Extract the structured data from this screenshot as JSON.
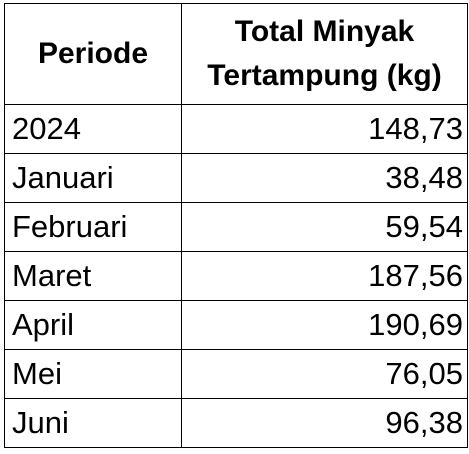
{
  "table": {
    "headers": [
      "Periode",
      "Total Minyak Tertampung (kg)"
    ],
    "header_lines": [
      "Total Minyak",
      "Tertampung (kg)"
    ],
    "rows": [
      {
        "period": "2024",
        "value": "148,73"
      },
      {
        "period": "Januari",
        "value": "38,48"
      },
      {
        "period": "Februari",
        "value": "59,54"
      },
      {
        "period": "Maret",
        "value": "187,56"
      },
      {
        "period": "April",
        "value": "190,69"
      },
      {
        "period": "Mei",
        "value": "76,05"
      },
      {
        "period": "Juni",
        "value": "96,38"
      }
    ]
  }
}
